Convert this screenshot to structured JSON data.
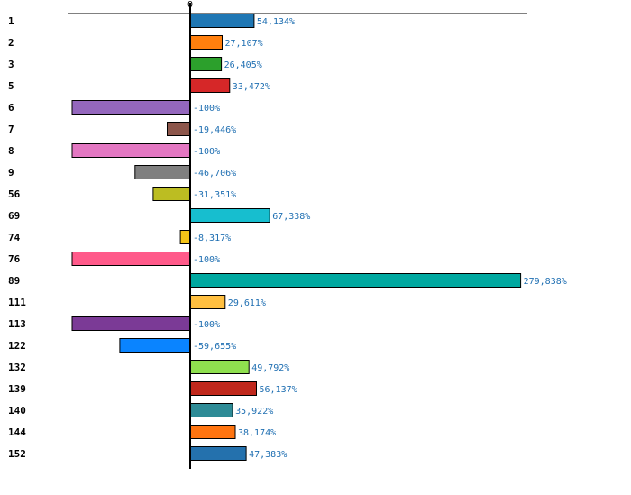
{
  "chart_data": {
    "type": "bar",
    "orientation": "horizontal",
    "title": "",
    "xlabel": "",
    "ylabel": "",
    "xlim": [
      -100,
      279.838
    ],
    "zero_tick_label": "0",
    "categories": [
      "1",
      "2",
      "3",
      "5",
      "6",
      "7",
      "8",
      "9",
      "56",
      "69",
      "74",
      "76",
      "89",
      "111",
      "113",
      "122",
      "132",
      "139",
      "140",
      "144",
      "152"
    ],
    "values": [
      54.134,
      27.107,
      26.405,
      33.472,
      -100,
      -19.446,
      -100,
      -46.706,
      -31.351,
      67.338,
      -8.317,
      -100,
      279.838,
      29.611,
      -100,
      -59.655,
      49.792,
      56.137,
      35.922,
      38.174,
      47.383
    ],
    "value_labels": [
      "54,134%",
      "27,107%",
      "26,405%",
      "33,472%",
      "-100%",
      "-19,446%",
      "-100%",
      "-46,706%",
      "-31,351%",
      "67,338%",
      "-8,317%",
      "-100%",
      "279,838%",
      "29,611%",
      "-100%",
      "-59,655%",
      "49,792%",
      "56,137%",
      "35,922%",
      "38,174%",
      "47,383%"
    ],
    "colors": [
      "#1f77b4",
      "#ff7f0e",
      "#2ca02c",
      "#d62728",
      "#9467bd",
      "#8c564b",
      "#e377c2",
      "#7f7f7f",
      "#bcbd22",
      "#17becf",
      "#f5c518",
      "#ff5a8a",
      "#00a8a0",
      "#ffbf40",
      "#7b3a96",
      "#0a84ff",
      "#8fe04f",
      "#c0281c",
      "#2e8b96",
      "#ff7410",
      "#2471ad"
    ],
    "label_color": "#1f6fb2",
    "axis_color": "#000000"
  }
}
